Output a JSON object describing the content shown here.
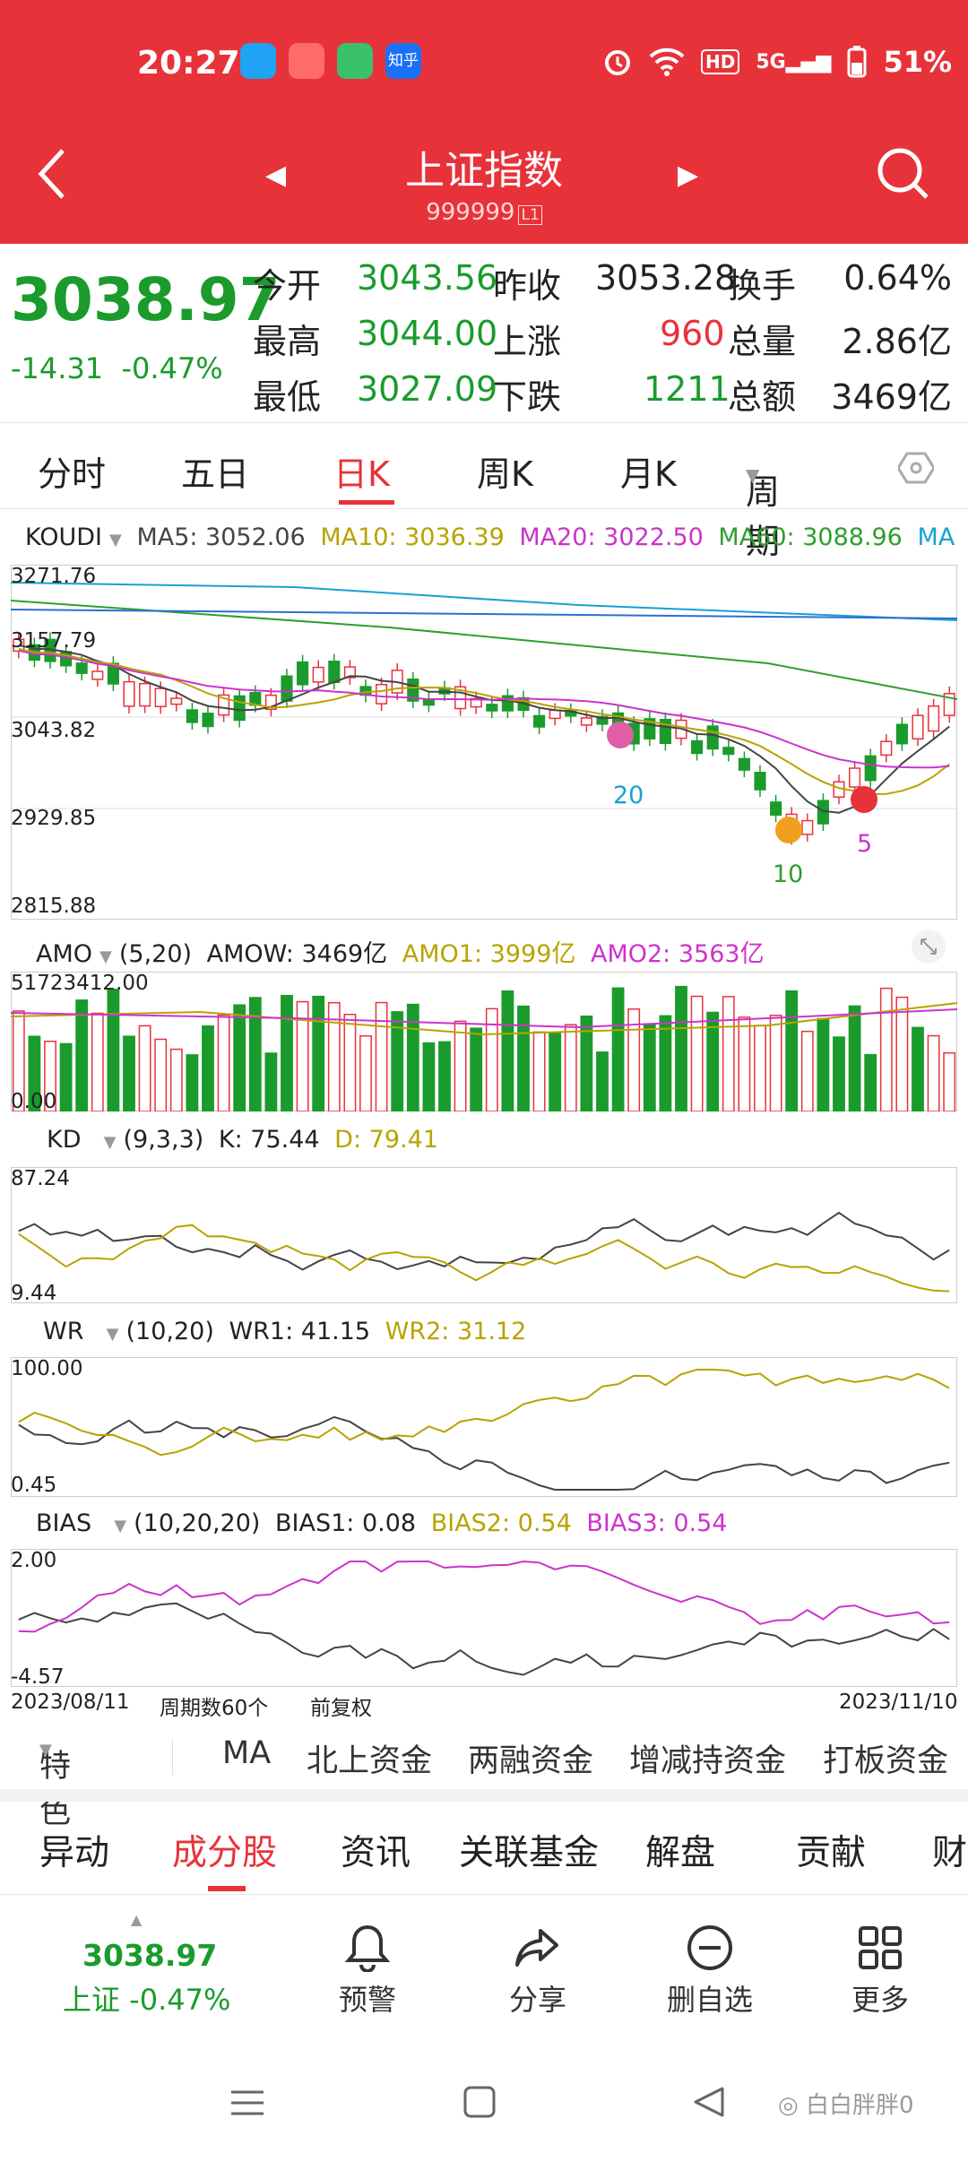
{
  "status_bar": {
    "time": "20:27",
    "battery": "51%",
    "hd": "HD",
    "net": "5G"
  },
  "app_icons": [
    {
      "name": "bilibili-app-icon",
      "color": "#1fa3f2"
    },
    {
      "name": "xiaohongshu-app-icon",
      "color": "#ff4b4b"
    },
    {
      "name": "message-app-icon",
      "color": "#3ac16b"
    },
    {
      "name": "zhihu-app-icon",
      "color": "#1772f6",
      "label": "知乎"
    }
  ],
  "nav": {
    "title": "上证指数",
    "code": "999999",
    "badge": "L1"
  },
  "quote": {
    "price": "3038.97",
    "change": "-14.31",
    "change_pct": "-0.47%",
    "rows": [
      {
        "l1": "今开",
        "v1": "3043.56",
        "l2": "昨收",
        "v2": "3053.28",
        "l3": "换手",
        "v3": "0.64%"
      },
      {
        "l1": "最高",
        "v1": "3044.00",
        "l2": "上涨",
        "v2": "960",
        "l3": "总量",
        "v3": "2.86亿"
      },
      {
        "l1": "最低",
        "v1": "3027.09",
        "l2": "下跌",
        "v2": "1211",
        "l3": "总额",
        "v3": "3469亿"
      }
    ]
  },
  "period_tabs": [
    "分时",
    "五日",
    "日K",
    "周K",
    "月K",
    "周期"
  ],
  "kline": {
    "indicator": "KOUDI",
    "ma5": "MA5: 3052.06",
    "ma10": "MA10: 3036.39",
    "ma20": "MA20: 3022.50",
    "ma60": "MA60: 3088.96",
    "ma_more": "MA",
    "y_labels": [
      "3271.76",
      "3157.79",
      "3043.82",
      "2929.85",
      "2815.88"
    ],
    "markers": [
      "20",
      "10",
      "5"
    ]
  },
  "amo": {
    "name": "AMO",
    "params": "(5,20)",
    "amow": "AMOW: 3469亿",
    "amo1": "AMO1: 3999亿",
    "amo2": "AMO2: 3563亿",
    "y_max": "51723412.00",
    "y_min": "0.00"
  },
  "kd": {
    "name": "KD",
    "params": "(9,3,3)",
    "k": "K: 75.44",
    "d": "D: 79.41",
    "y_max": "87.24",
    "y_min": "9.44"
  },
  "wr": {
    "name": "WR",
    "params": "(10,20)",
    "wr1": "WR1: 41.15",
    "wr2": "WR2: 31.12",
    "y_max": "100.00",
    "y_min": "0.45"
  },
  "bias": {
    "name": "BIAS",
    "params": "(10,20,20)",
    "b1": "BIAS1: 0.08",
    "b2": "BIAS2: 0.54",
    "b3": "BIAS3: 0.54",
    "y_max": "2.00",
    "y_min": "-4.57"
  },
  "date_axis": {
    "start": "2023/08/11",
    "count": "周期数60个",
    "adjust": "前复权",
    "end": "2023/11/10"
  },
  "feature_row": [
    "特色",
    "MA",
    "北上资金",
    "两融资金",
    "增减持资金",
    "打板资金"
  ],
  "info_tabs": [
    "异动",
    "成分股",
    "资讯",
    "关联基金",
    "解盘",
    "贡献",
    "财"
  ],
  "bottom": {
    "price": "3038.97",
    "name": "上证 -0.47%",
    "alert": "预警",
    "share": "分享",
    "remove": "删自选",
    "more": "更多"
  },
  "watermark": "白白胖胖0",
  "colors": {
    "red": "#e8323a",
    "green": "#1a9b2c",
    "ma5": "#444444",
    "ma10": "#b8a300",
    "ma20": "#cc33cc",
    "ma60": "#2e9e2e"
  }
}
